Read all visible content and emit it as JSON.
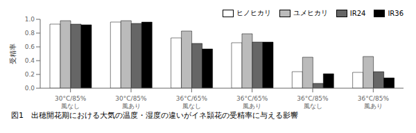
{
  "chart_data": {
    "type": "bar",
    "caption": "図1　出穂開花期における大気の温度・湿度の違いがイネ頴花の受精率に与える影響",
    "categories": [
      "30°C/85%\n風なし",
      "30°C/85%\n風あり",
      "36°C/65%\n風なし",
      "36°C/65%\n風あり",
      "36°C/85%\n風なし",
      "36°C/85%\n風あり"
    ],
    "series": [
      {
        "name": "ヒノヒカリ",
        "color": "#ffffff",
        "values": [
          0.93,
          0.96,
          0.73,
          0.66,
          0.24,
          0.23
        ]
      },
      {
        "name": "ユメヒカリ",
        "color": "#bbbbbb",
        "values": [
          0.98,
          0.98,
          0.83,
          0.79,
          0.45,
          0.46
        ]
      },
      {
        "name": "IR24",
        "color": "#666666",
        "values": [
          0.93,
          0.94,
          0.65,
          0.67,
          0.07,
          0.24
        ]
      },
      {
        "name": "IR36",
        "color": "#000000",
        "values": [
          0.92,
          0.96,
          0.57,
          0.67,
          0.21,
          0.15
        ]
      }
    ],
    "ylabel": "受精率",
    "ylim": [
      0,
      1
    ],
    "yticks": [
      {
        "value": 0,
        "label": "0.0"
      },
      0.2,
      0.4,
      0.6,
      0.8,
      {
        "value": 1,
        "label": "1.0"
      }
    ],
    "legend": "top"
  }
}
